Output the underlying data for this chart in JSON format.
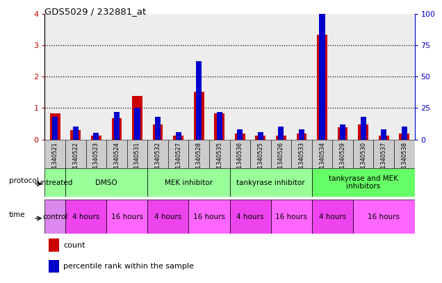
{
  "title": "GDS5029 / 232881_at",
  "samples": [
    "GSM1340521",
    "GSM1340522",
    "GSM1340523",
    "GSM1340524",
    "GSM1340531",
    "GSM1340532",
    "GSM1340527",
    "GSM1340528",
    "GSM1340535",
    "GSM1340536",
    "GSM1340525",
    "GSM1340526",
    "GSM1340533",
    "GSM1340534",
    "GSM1340529",
    "GSM1340530",
    "GSM1340537",
    "GSM1340538"
  ],
  "red_values": [
    0.82,
    0.3,
    0.12,
    0.68,
    1.38,
    0.47,
    0.12,
    1.52,
    0.82,
    0.18,
    0.13,
    0.12,
    0.18,
    3.32,
    0.38,
    0.48,
    0.12,
    0.18
  ],
  "blue_values_pct": [
    18,
    10,
    5,
    22,
    25,
    18,
    6,
    62,
    22,
    8,
    6,
    10,
    8,
    102,
    12,
    18,
    8,
    10
  ],
  "ylim_left": [
    0,
    4
  ],
  "ylim_right": [
    0,
    100
  ],
  "yticks_left": [
    0,
    1,
    2,
    3,
    4
  ],
  "yticks_right": [
    0,
    25,
    50,
    75,
    100
  ],
  "protocol_groups": [
    {
      "label": "untreated",
      "start": 0,
      "end": 1,
      "color": "#99ff99"
    },
    {
      "label": "DMSO",
      "start": 1,
      "end": 5,
      "color": "#99ff99"
    },
    {
      "label": "MEK inhibitor",
      "start": 5,
      "end": 9,
      "color": "#99ff99"
    },
    {
      "label": "tankyrase inhibitor",
      "start": 9,
      "end": 13,
      "color": "#99ff99"
    },
    {
      "label": "tankyrase and MEK\ninhibitors",
      "start": 13,
      "end": 18,
      "color": "#66ff66"
    }
  ],
  "time_groups": [
    {
      "label": "control",
      "start": 0,
      "end": 1,
      "color": "#dd88ee"
    },
    {
      "label": "4 hours",
      "start": 1,
      "end": 3,
      "color": "#ee44ee"
    },
    {
      "label": "16 hours",
      "start": 3,
      "end": 5,
      "color": "#ff66ff"
    },
    {
      "label": "4 hours",
      "start": 5,
      "end": 7,
      "color": "#ee44ee"
    },
    {
      "label": "16 hours",
      "start": 7,
      "end": 9,
      "color": "#ff66ff"
    },
    {
      "label": "4 hours",
      "start": 9,
      "end": 11,
      "color": "#ee44ee"
    },
    {
      "label": "16 hours",
      "start": 11,
      "end": 13,
      "color": "#ff66ff"
    },
    {
      "label": "4 hours",
      "start": 13,
      "end": 15,
      "color": "#ee44ee"
    },
    {
      "label": "16 hours",
      "start": 15,
      "end": 18,
      "color": "#ff66ff"
    }
  ],
  "bar_color_red": "#cc0000",
  "bar_color_blue": "#0000cc",
  "bar_width": 0.5,
  "bg_color": "#ffffff",
  "left_axis_color": "#cc0000",
  "right_axis_color": "#0000cc",
  "grid_color": "#000000",
  "sample_bg_color": "#cccccc"
}
